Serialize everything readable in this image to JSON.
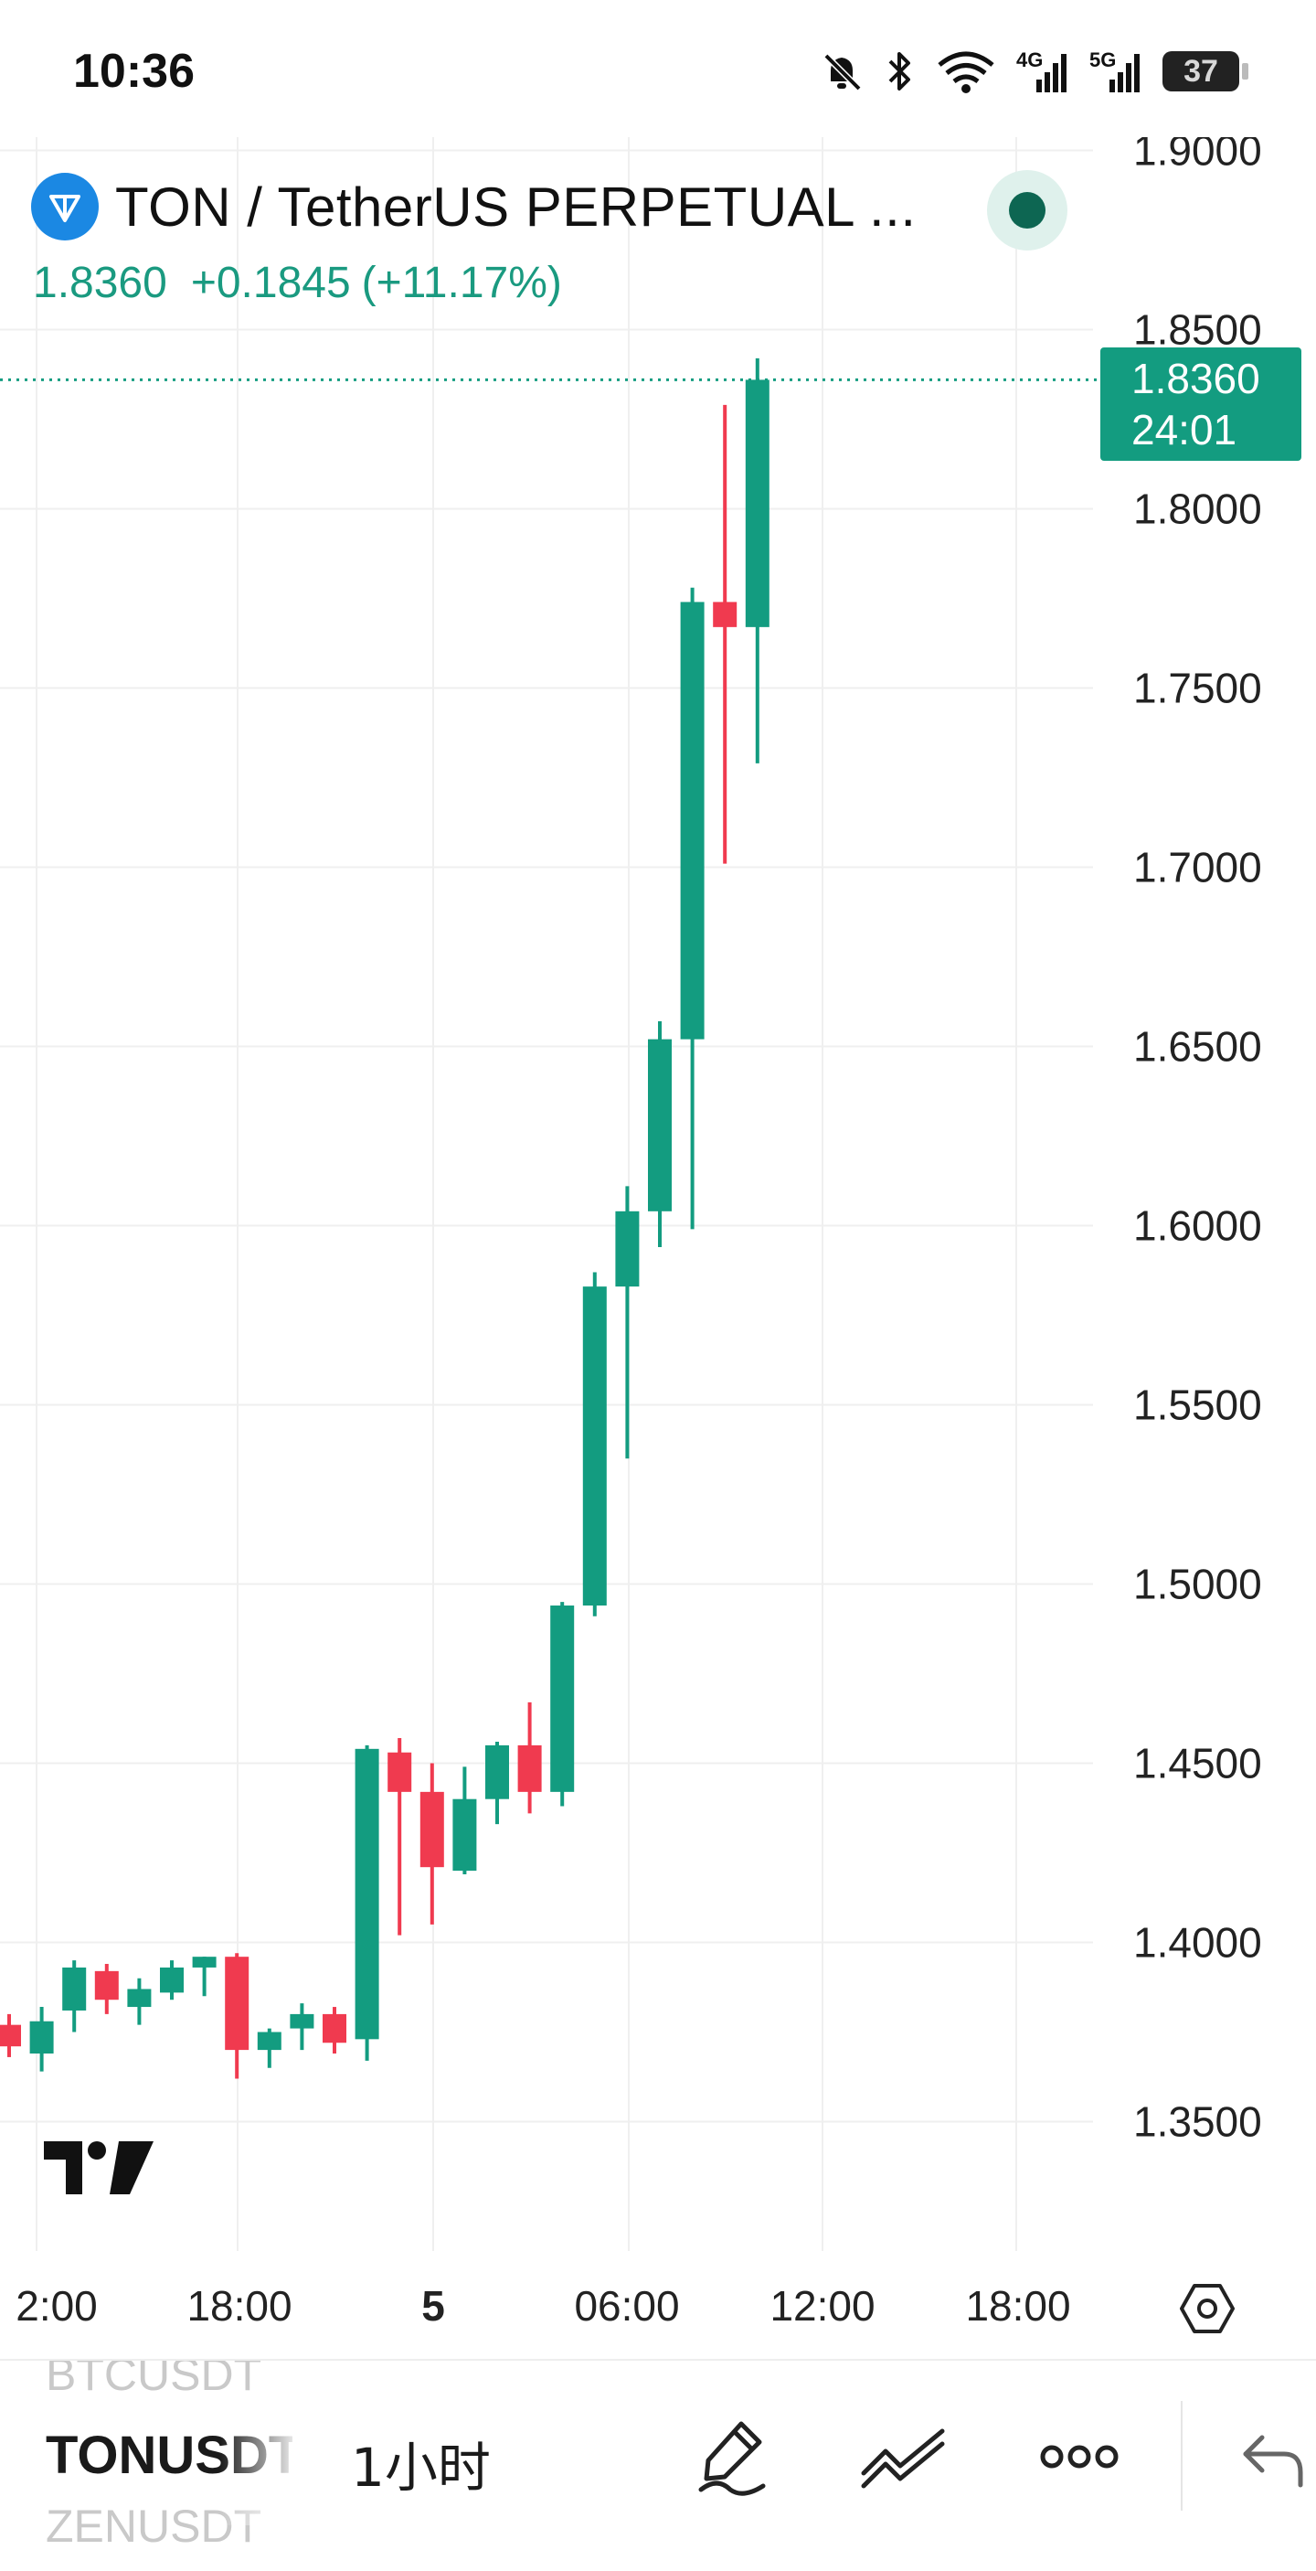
{
  "status_bar": {
    "time": "10:36",
    "net1_label": "4G",
    "net2_label": "5G",
    "battery": "37"
  },
  "header": {
    "symbol_title": "TON / TetherUS PERPETUAL ...",
    "last_price": "1.8360",
    "change": "+0.1845",
    "change_pct": "(+11.17%)"
  },
  "price_tag": {
    "price": "1.8360",
    "countdown": "24:01"
  },
  "colors": {
    "up": "#139c80",
    "down": "#f03a4f",
    "grid": "#efefef",
    "axis_text": "#222222"
  },
  "chart_data": {
    "type": "candlestick",
    "y_axis_labels": [
      "1.9000",
      "1.8500",
      "1.8000",
      "1.7500",
      "1.7000",
      "1.6500",
      "1.6000",
      "1.5500",
      "1.5000",
      "1.4500",
      "1.4000",
      "1.3500"
    ],
    "x_axis_labels": [
      "2:00",
      "18:00",
      "5",
      "06:00",
      "12:00",
      "18:00"
    ],
    "bold_x_label": "5",
    "candles": [
      {
        "o": 1.377,
        "h": 1.38,
        "l": 1.368,
        "c": 1.371
      },
      {
        "o": 1.369,
        "h": 1.382,
        "l": 1.364,
        "c": 1.378
      },
      {
        "o": 1.381,
        "h": 1.395,
        "l": 1.375,
        "c": 1.393
      },
      {
        "o": 1.392,
        "h": 1.394,
        "l": 1.38,
        "c": 1.384
      },
      {
        "o": 1.382,
        "h": 1.39,
        "l": 1.377,
        "c": 1.387
      },
      {
        "o": 1.386,
        "h": 1.395,
        "l": 1.384,
        "c": 1.393
      },
      {
        "o": 1.393,
        "h": 1.396,
        "l": 1.385,
        "c": 1.396
      },
      {
        "o": 1.396,
        "h": 1.397,
        "l": 1.362,
        "c": 1.37
      },
      {
        "o": 1.37,
        "h": 1.376,
        "l": 1.365,
        "c": 1.375
      },
      {
        "o": 1.376,
        "h": 1.383,
        "l": 1.37,
        "c": 1.38
      },
      {
        "o": 1.38,
        "h": 1.382,
        "l": 1.369,
        "c": 1.372
      },
      {
        "o": 1.373,
        "h": 1.455,
        "l": 1.367,
        "c": 1.454
      },
      {
        "o": 1.453,
        "h": 1.457,
        "l": 1.402,
        "c": 1.442
      },
      {
        "o": 1.442,
        "h": 1.45,
        "l": 1.405,
        "c": 1.421
      },
      {
        "o": 1.42,
        "h": 1.449,
        "l": 1.419,
        "c": 1.44
      },
      {
        "o": 1.44,
        "h": 1.456,
        "l": 1.433,
        "c": 1.455
      },
      {
        "o": 1.455,
        "h": 1.467,
        "l": 1.436,
        "c": 1.442
      },
      {
        "o": 1.442,
        "h": 1.495,
        "l": 1.438,
        "c": 1.494
      },
      {
        "o": 1.494,
        "h": 1.587,
        "l": 1.491,
        "c": 1.583
      },
      {
        "o": 1.583,
        "h": 1.611,
        "l": 1.535,
        "c": 1.604
      },
      {
        "o": 1.604,
        "h": 1.657,
        "l": 1.594,
        "c": 1.652
      },
      {
        "o": 1.652,
        "h": 1.778,
        "l": 1.599,
        "c": 1.774
      },
      {
        "o": 1.774,
        "h": 1.829,
        "l": 1.701,
        "c": 1.767
      },
      {
        "o": 1.767,
        "h": 1.842,
        "l": 1.729,
        "c": 1.836
      }
    ]
  },
  "bottom_bar": {
    "prev_symbol": "BTCUSDT",
    "current_symbol": "TONUSDT",
    "next_symbol": "ZENUSDT",
    "interval": "1小时"
  }
}
